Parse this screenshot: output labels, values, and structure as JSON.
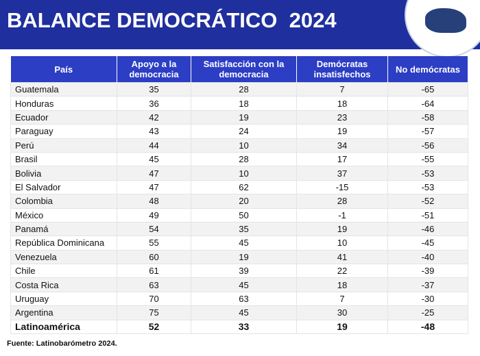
{
  "header": {
    "title": "BALANCE DEMOCRÁTICO  2024"
  },
  "table": {
    "header": [
      "País",
      "Apoyo a la democracia",
      "Satisfacción con la democracia",
      "Demócratas insatisfechos",
      "No demócratas"
    ],
    "rows": [
      [
        "Guatemala",
        35,
        28,
        7,
        -65
      ],
      [
        "Honduras",
        36,
        18,
        18,
        -64
      ],
      [
        "Ecuador",
        42,
        19,
        23,
        -58
      ],
      [
        "Paraguay",
        43,
        24,
        19,
        -57
      ],
      [
        "Perú",
        44,
        10,
        34,
        -56
      ],
      [
        "Brasil",
        45,
        28,
        17,
        -55
      ],
      [
        "Bolivia",
        47,
        10,
        37,
        -53
      ],
      [
        "El Salvador",
        47,
        62,
        -15,
        -53
      ],
      [
        "Colombia",
        48,
        20,
        28,
        -52
      ],
      [
        "México",
        49,
        50,
        -1,
        -51
      ],
      [
        "Panamá",
        54,
        35,
        19,
        -46
      ],
      [
        "República Dominicana",
        55,
        45,
        10,
        -45
      ],
      [
        "Venezuela",
        60,
        19,
        41,
        -40
      ],
      [
        "Chile",
        61,
        39,
        22,
        -39
      ],
      [
        "Costa Rica",
        63,
        45,
        18,
        -37
      ],
      [
        "Uruguay",
        70,
        63,
        7,
        -30
      ],
      [
        "Argentina",
        75,
        45,
        30,
        -25
      ],
      [
        "Latinoamérica",
        52,
        33,
        19,
        -48
      ]
    ]
  },
  "footer": {
    "source": "Fuente: Latinobarómetro 2024."
  }
}
